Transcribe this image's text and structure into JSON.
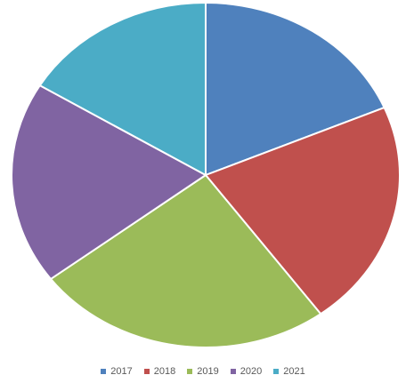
{
  "chart_data": {
    "type": "pie",
    "categories": [
      "2017",
      "2018",
      "2019",
      "2020",
      "2021"
    ],
    "values": [
      18.6,
      21.3,
      24.8,
      19.0,
      16.3
    ],
    "colors": [
      "#4f81bd",
      "#c0504d",
      "#9bbb59",
      "#8064a2",
      "#4bacc6"
    ],
    "title": "",
    "legend_position": "bottom",
    "start_angle": "12 o'clock",
    "direction": "clockwise"
  },
  "legend": {
    "items": [
      {
        "label": "2017",
        "color": "#4f81bd"
      },
      {
        "label": "2018",
        "color": "#c0504d"
      },
      {
        "label": "2019",
        "color": "#9bbb59"
      },
      {
        "label": "2020",
        "color": "#8064a2"
      },
      {
        "label": "2021",
        "color": "#4bacc6"
      }
    ]
  }
}
